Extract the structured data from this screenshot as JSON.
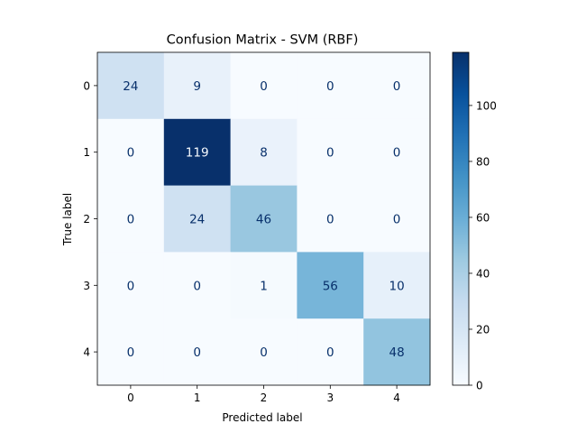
{
  "chart_data": {
    "type": "heatmap",
    "title": "Confusion Matrix - SVM (RBF)",
    "xlabel": "Predicted label",
    "ylabel": "True label",
    "x_categories": [
      "0",
      "1",
      "2",
      "3",
      "4"
    ],
    "y_categories": [
      "0",
      "1",
      "2",
      "3",
      "4"
    ],
    "values": [
      [
        24,
        9,
        0,
        0,
        0
      ],
      [
        0,
        119,
        8,
        0,
        0
      ],
      [
        0,
        24,
        46,
        0,
        0
      ],
      [
        0,
        0,
        1,
        56,
        10
      ],
      [
        0,
        0,
        0,
        0,
        48
      ]
    ],
    "colormap": "Blues",
    "colorbar": {
      "range": [
        0,
        119
      ],
      "ticks": [
        0,
        20,
        40,
        60,
        80,
        100
      ]
    },
    "colors": {
      "low": "#f7fbff",
      "high": "#08306b",
      "text_dark": "#08306b",
      "text_light": "#f7fbff"
    }
  }
}
